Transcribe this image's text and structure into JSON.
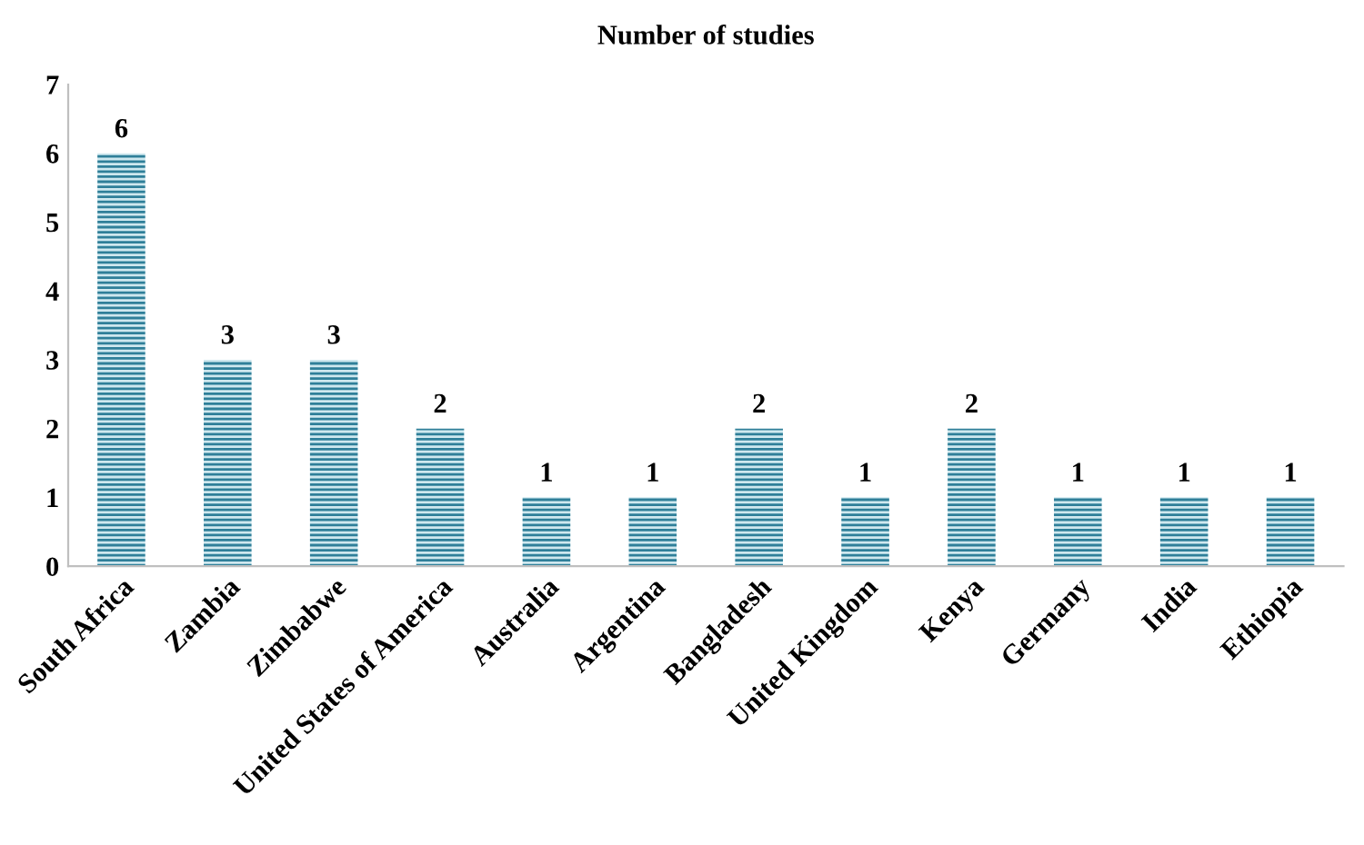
{
  "chart_data": {
    "type": "bar",
    "title": "Number of studies",
    "categories": [
      "South Africa",
      "Zambia",
      "Zimbabwe",
      "United States of America",
      "Australia",
      "Argentina",
      "Bangladesh",
      "United Kingdom",
      "Kenya",
      "Germany",
      "India",
      "Ethiopia"
    ],
    "values": [
      6,
      3,
      3,
      2,
      1,
      1,
      2,
      1,
      2,
      1,
      1,
      1
    ],
    "color": "#2f7f99",
    "ylim": [
      0,
      7
    ],
    "yticks": [
      0,
      1,
      2,
      3,
      4,
      5,
      6,
      7
    ],
    "grid": false,
    "data_labels": true
  }
}
